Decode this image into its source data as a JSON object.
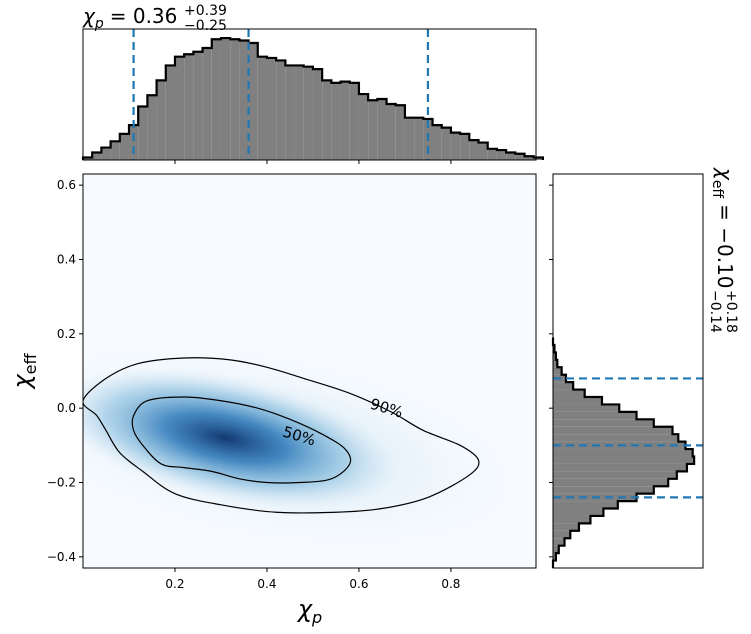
{
  "chart_data": [
    {
      "type": "histogram",
      "role": "top-marginal",
      "title": {
        "base": "χ",
        "sub": "p",
        "value": "= 0.36",
        "plus": "+0.39",
        "minus": "−0.25"
      },
      "x": [
        0.0,
        0.02,
        0.04,
        0.06,
        0.08,
        0.1,
        0.12,
        0.14,
        0.16,
        0.18,
        0.2,
        0.22,
        0.24,
        0.26,
        0.28,
        0.3,
        0.32,
        0.34,
        0.36,
        0.38,
        0.4,
        0.42,
        0.44,
        0.46,
        0.48,
        0.5,
        0.52,
        0.54,
        0.56,
        0.58,
        0.6,
        0.62,
        0.64,
        0.66,
        0.68,
        0.7,
        0.72,
        0.74,
        0.76,
        0.78,
        0.8,
        0.82,
        0.84,
        0.86,
        0.88,
        0.9,
        0.92,
        0.94,
        0.96,
        0.98
      ],
      "values": [
        0.02,
        0.06,
        0.1,
        0.15,
        0.21,
        0.28,
        0.43,
        0.52,
        0.64,
        0.76,
        0.83,
        0.85,
        0.87,
        0.9,
        0.97,
        0.98,
        0.97,
        0.96,
        0.94,
        0.83,
        0.82,
        0.8,
        0.76,
        0.76,
        0.75,
        0.73,
        0.64,
        0.62,
        0.63,
        0.62,
        0.53,
        0.48,
        0.49,
        0.45,
        0.44,
        0.34,
        0.34,
        0.33,
        0.28,
        0.26,
        0.22,
        0.21,
        0.16,
        0.14,
        0.09,
        0.08,
        0.06,
        0.05,
        0.03,
        0.02
      ],
      "bin_width": 0.02,
      "xlim": [
        0.0,
        0.985
      ],
      "quantile_lines": [
        0.11,
        0.36,
        0.75
      ],
      "fill": "#808080",
      "edge": "#000000",
      "line_color": "#1f77b4"
    },
    {
      "type": "heatmap",
      "role": "joint-density",
      "xlabel": {
        "base": "χ",
        "sub": "p"
      },
      "ylabel": {
        "base": "χ",
        "sub": "eff"
      },
      "xlim": [
        0.0,
        0.985
      ],
      "ylim": [
        -0.43,
        0.63
      ],
      "xticks": [
        0.2,
        0.4,
        0.6,
        0.8
      ],
      "xtick_labels": [
        "0.2",
        "0.4",
        "0.6",
        "0.8"
      ],
      "yticks": [
        -0.4,
        -0.2,
        0.0,
        0.2,
        0.4,
        0.6
      ],
      "ytick_labels": [
        "−0.4",
        "−0.2",
        "0.0",
        "0.2",
        "0.4",
        "0.6"
      ],
      "density_peak": [
        0.31,
        -0.08
      ],
      "colormap": "Blues",
      "contours": [
        {
          "label": "50%",
          "label_at": [
            0.47,
            -0.075
          ],
          "points": [
            [
              0.11,
              -0.02
            ],
            [
              0.14,
              0.02
            ],
            [
              0.22,
              0.03
            ],
            [
              0.3,
              0.02
            ],
            [
              0.38,
              0.0
            ],
            [
              0.45,
              -0.03
            ],
            [
              0.52,
              -0.07
            ],
            [
              0.57,
              -0.11
            ],
            [
              0.58,
              -0.15
            ],
            [
              0.54,
              -0.19
            ],
            [
              0.47,
              -0.2
            ],
            [
              0.4,
              -0.2
            ],
            [
              0.34,
              -0.19
            ],
            [
              0.28,
              -0.17
            ],
            [
              0.22,
              -0.16
            ],
            [
              0.17,
              -0.15
            ],
            [
              0.13,
              -0.1
            ],
            [
              0.11,
              -0.06
            ]
          ]
        },
        {
          "label": "90%",
          "label_at": [
            0.66,
            0.0
          ],
          "points": [
            [
              0.0,
              0.02
            ],
            [
              0.05,
              0.08
            ],
            [
              0.12,
              0.12
            ],
            [
              0.22,
              0.135
            ],
            [
              0.32,
              0.13
            ],
            [
              0.4,
              0.11
            ],
            [
              0.48,
              0.08
            ],
            [
              0.58,
              0.04
            ],
            [
              0.67,
              -0.01
            ],
            [
              0.74,
              -0.06
            ],
            [
              0.82,
              -0.1
            ],
            [
              0.86,
              -0.14
            ],
            [
              0.84,
              -0.18
            ],
            [
              0.75,
              -0.24
            ],
            [
              0.65,
              -0.27
            ],
            [
              0.55,
              -0.28
            ],
            [
              0.42,
              -0.28
            ],
            [
              0.3,
              -0.26
            ],
            [
              0.2,
              -0.23
            ],
            [
              0.13,
              -0.17
            ],
            [
              0.08,
              -0.12
            ],
            [
              0.05,
              -0.06
            ],
            [
              0.03,
              -0.02
            ]
          ]
        }
      ]
    },
    {
      "type": "histogram",
      "role": "right-marginal",
      "orientation": "horizontal",
      "title": {
        "base": "χ",
        "sub": "eff",
        "value": "= −0.10",
        "plus": "+0.18",
        "minus": "−0.14"
      },
      "y": [
        -0.43,
        -0.41,
        -0.39,
        -0.37,
        -0.35,
        -0.33,
        -0.31,
        -0.29,
        -0.27,
        -0.25,
        -0.23,
        -0.21,
        -0.19,
        -0.17,
        -0.15,
        -0.13,
        -0.11,
        -0.09,
        -0.07,
        -0.05,
        -0.03,
        -0.01,
        0.01,
        0.03,
        0.05,
        0.07,
        0.09,
        0.11,
        0.13,
        0.15,
        0.17
      ],
      "values": [
        0.0,
        0.02,
        0.04,
        0.08,
        0.12,
        0.18,
        0.26,
        0.35,
        0.45,
        0.58,
        0.7,
        0.8,
        0.86,
        0.93,
        0.98,
        0.97,
        0.92,
        0.87,
        0.83,
        0.7,
        0.58,
        0.46,
        0.34,
        0.22,
        0.14,
        0.09,
        0.06,
        0.03,
        0.02,
        0.01,
        0.0
      ],
      "bin_height": 0.02,
      "ylim": [
        -0.43,
        0.63
      ],
      "quantile_lines": [
        -0.24,
        -0.1,
        0.08
      ],
      "fill": "#808080",
      "edge": "#000000",
      "line_color": "#1f77b4"
    }
  ]
}
